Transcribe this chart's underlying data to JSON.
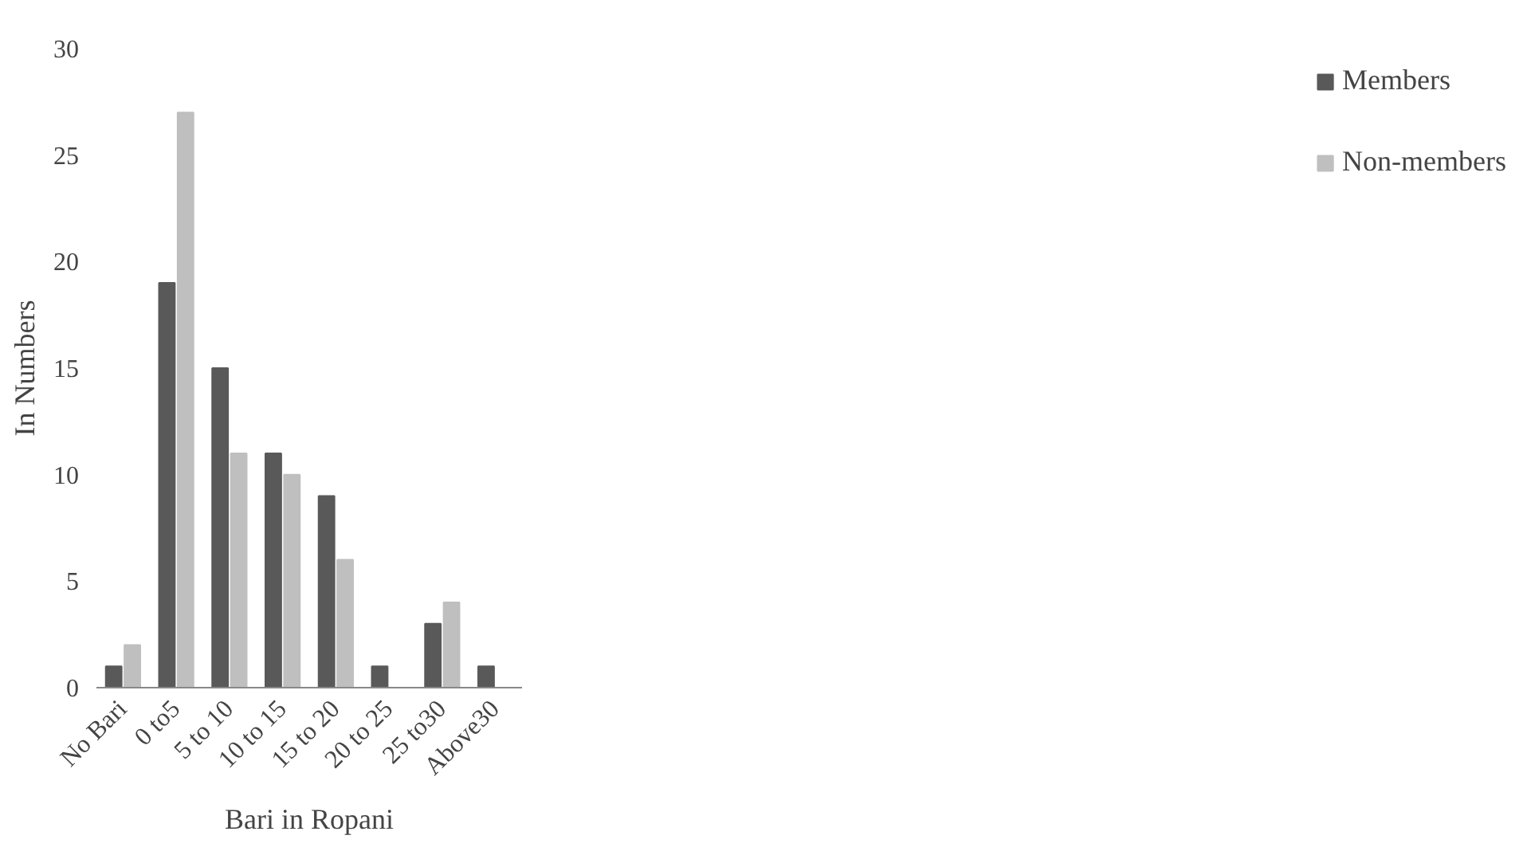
{
  "chart_data": {
    "type": "bar",
    "xlabel": "Bari in Ropani",
    "ylabel": "In Numbers",
    "categories": [
      "No Bari",
      "0 to5",
      "5 to 10",
      "10 to 15",
      "15 to 20",
      "20 to 25",
      "25 to30",
      "Above30"
    ],
    "series": [
      {
        "name": "Members",
        "color": "#595959",
        "values": [
          1,
          19,
          15,
          11,
          9,
          1,
          3,
          1
        ]
      },
      {
        "name": "Non-members",
        "color": "#bfbfbf",
        "values": [
          2,
          27,
          11,
          10,
          6,
          0,
          4,
          0
        ]
      }
    ],
    "ylim": [
      0,
      30
    ],
    "yticks": [
      0,
      5,
      10,
      15,
      20,
      25,
      30
    ],
    "grid": false,
    "legend": "right"
  }
}
